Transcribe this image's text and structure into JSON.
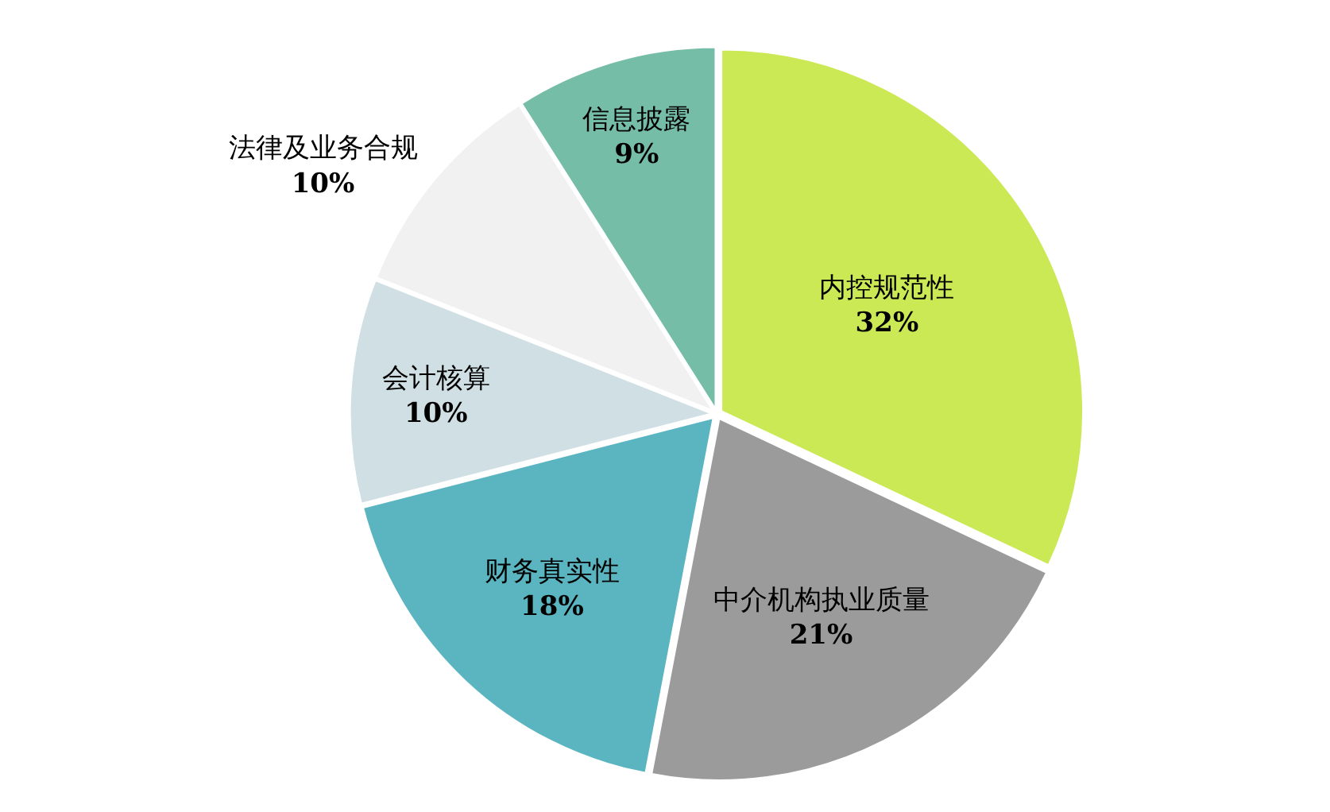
{
  "chart_data": {
    "type": "pie",
    "categories": [
      "内控规范性",
      "中介机构执业质量",
      "财务真实性",
      "会计核算",
      "法律及业务合规",
      "信息披露"
    ],
    "values": [
      32,
      21,
      18,
      10,
      10,
      9
    ],
    "value_labels": [
      "32%",
      "21%",
      "18%",
      "10%",
      "10%",
      "9%"
    ],
    "colors": [
      "#cbe955",
      "#9b9b9b",
      "#5ab5c1",
      "#cfdfe4",
      "#f1f1f1",
      "#76bda8"
    ]
  }
}
